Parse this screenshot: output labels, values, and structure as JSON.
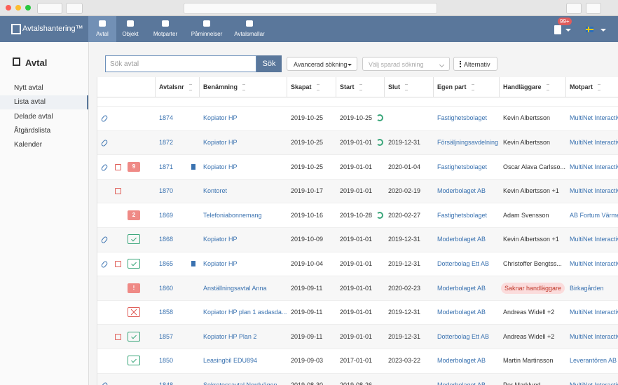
{
  "app": {
    "logo": "Avtalshantering™",
    "nav": [
      "Avtal",
      "Objekt",
      "Motparter",
      "Påminnelser",
      "Avtalsmallar"
    ],
    "active_nav": 0,
    "notification_badge": "99+"
  },
  "sidebar": {
    "title": "Avtal",
    "items": [
      "Nytt avtal",
      "Lista avtal",
      "Delade avtal",
      "Åtgärdslista",
      "Kalender"
    ],
    "active": 1
  },
  "search": {
    "placeholder": "Sök avtal",
    "button": "Sök",
    "advanced": "Avancerad sökning",
    "saved": "Välj sparad sökning",
    "options": "Alternativ"
  },
  "table": {
    "columns": [
      "Avtalsnr",
      "Benämning",
      "Skapat",
      "Start",
      "Slut",
      "Egen part",
      "Handläggare",
      "Motpart"
    ],
    "rows": [
      {
        "attachment": true,
        "note": false,
        "badge": null,
        "status": null,
        "document": false,
        "renews": true,
        "cells": [
          "1874",
          "Kopiator HP",
          "2019-10-25",
          "2019-10-25",
          null,
          "Fastighetsbolaget",
          "Kevin Albertsson",
          "MultiNet Interactive"
        ]
      },
      {
        "attachment": true,
        "note": false,
        "badge": null,
        "status": null,
        "document": false,
        "renews": true,
        "cells": [
          "1872",
          "Kopiator HP",
          "2019-10-25",
          "2019-01-01",
          "2019-12-31",
          "Försäljningsavdelning",
          "Kevin Albertsson",
          "MultiNet Interactive"
        ]
      },
      {
        "attachment": true,
        "note": true,
        "badge": "9",
        "status": null,
        "document": true,
        "renews": false,
        "cells": [
          "1871",
          "Kopiator HP",
          "2019-10-25",
          "2019-01-01",
          "2020-01-04",
          "Fastighetsbolaget",
          "Oscar Alava Carlsso...",
          "MultiNet Interactive"
        ]
      },
      {
        "attachment": false,
        "note": true,
        "badge": null,
        "status": null,
        "document": false,
        "renews": false,
        "cells": [
          "1870",
          "Kontoret",
          "2019-10-17",
          "2019-01-01",
          "2020-02-19",
          "Moderbolaget AB",
          "Kevin Albertsson +1",
          "MultiNet Interactive"
        ]
      },
      {
        "attachment": false,
        "note": false,
        "badge": "2",
        "status": null,
        "document": false,
        "renews": true,
        "cells": [
          "1869",
          "Telefoniabonnemang",
          "2019-10-16",
          "2019-10-28",
          "2020-02-27",
          "Fastighetsbolaget",
          "Adam Svensson",
          "AB Fortum Värme"
        ]
      },
      {
        "attachment": true,
        "note": false,
        "badge": null,
        "status": "ok",
        "document": false,
        "renews": false,
        "cells": [
          "1868",
          "Kopiator HP",
          "2019-10-09",
          "2019-01-01",
          "2019-12-31",
          "Moderbolaget AB",
          "Kevin Albertsson +1",
          "MultiNet Interactive"
        ]
      },
      {
        "attachment": true,
        "note": true,
        "badge": null,
        "status": "ok",
        "document": true,
        "renews": false,
        "cells": [
          "1865",
          "Kopiator HP",
          "2019-10-04",
          "2019-01-01",
          "2019-12-31",
          "Dotterbolag Ett AB",
          "Christoffer Bengtss...",
          "MultiNet Interactive"
        ]
      },
      {
        "attachment": false,
        "note": false,
        "badge": "!",
        "status": null,
        "document": false,
        "renews": false,
        "missing_handler": true,
        "cells": [
          "1860",
          "Anställningsavtal Anna",
          "2019-09-11",
          "2019-01-01",
          "2020-02-23",
          "Moderbolaget AB",
          "Saknar handläggare",
          "Birkagården"
        ]
      },
      {
        "attachment": false,
        "note": false,
        "badge": null,
        "status": "rejected",
        "document": false,
        "renews": false,
        "cells": [
          "1858",
          "Kopiator HP plan 1 asdasda...",
          "2019-09-11",
          "2019-01-01",
          "2019-12-31",
          "Moderbolaget AB",
          "Andreas Widell +2",
          "MultiNet Interactive"
        ]
      },
      {
        "attachment": false,
        "note": true,
        "badge": null,
        "status": "ok",
        "document": false,
        "renews": false,
        "cells": [
          "1857",
          "Kopiator HP Plan 2",
          "2019-09-11",
          "2019-01-01",
          "2019-12-31",
          "Dotterbolag Ett AB",
          "Andreas Widell +2",
          "MultiNet Interactive"
        ]
      },
      {
        "attachment": false,
        "note": false,
        "badge": null,
        "status": "ok",
        "document": false,
        "renews": false,
        "cells": [
          "1850",
          "Leasingbil EDU894",
          "2019-09-03",
          "2017-01-01",
          "2023-03-22",
          "Moderbolaget AB",
          "Martin Martinsson",
          "Leverantören AB"
        ]
      },
      {
        "attachment": true,
        "note": false,
        "badge": null,
        "status": null,
        "document": false,
        "renews": false,
        "cells": [
          "1848",
          "Sekretessavtal Nordvägen",
          "2019-08-30",
          "2019-08-26",
          null,
          "Moderbolaget AB",
          "Per Marklund",
          "MultiNet Interactive"
        ]
      }
    ]
  }
}
